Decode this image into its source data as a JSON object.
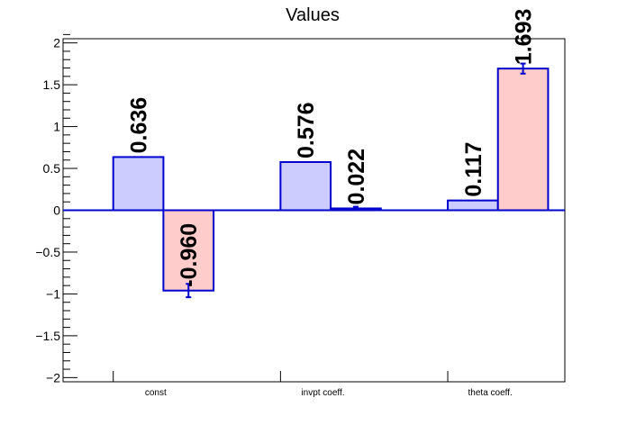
{
  "chart_data": {
    "type": "bar",
    "title": "Values",
    "categories": [
      "const",
      "invpt coeff.",
      "theta coeff."
    ],
    "series": [
      {
        "values": [
          0.636,
          0.576,
          0.117
        ],
        "errors": [
          0.0,
          0.0,
          0.0
        ],
        "labels": [
          "0.636",
          "0.576",
          "0.117"
        ]
      },
      {
        "values": [
          -0.96,
          0.022,
          1.693
        ],
        "errors": [
          0.08,
          0.02,
          0.06
        ],
        "labels": [
          "-0.960",
          "0.022",
          "1.693"
        ]
      }
    ],
    "ylim": [
      -2.05,
      2.05
    ],
    "yticks": [
      -2,
      -1.5,
      -1,
      -0.5,
      0,
      0.5,
      1,
      1.5,
      2
    ],
    "ytick_labels": [
      "−2",
      "−1.5",
      "−1",
      "−0.5",
      "0",
      "0.5",
      "1",
      "1.5",
      "2"
    ],
    "grid": false,
    "colors": {
      "series1_fill": "#ccccff",
      "series2_fill": "#ffcccc",
      "bar_edge": "#0000cc",
      "zero_line": "#0000cc"
    }
  }
}
